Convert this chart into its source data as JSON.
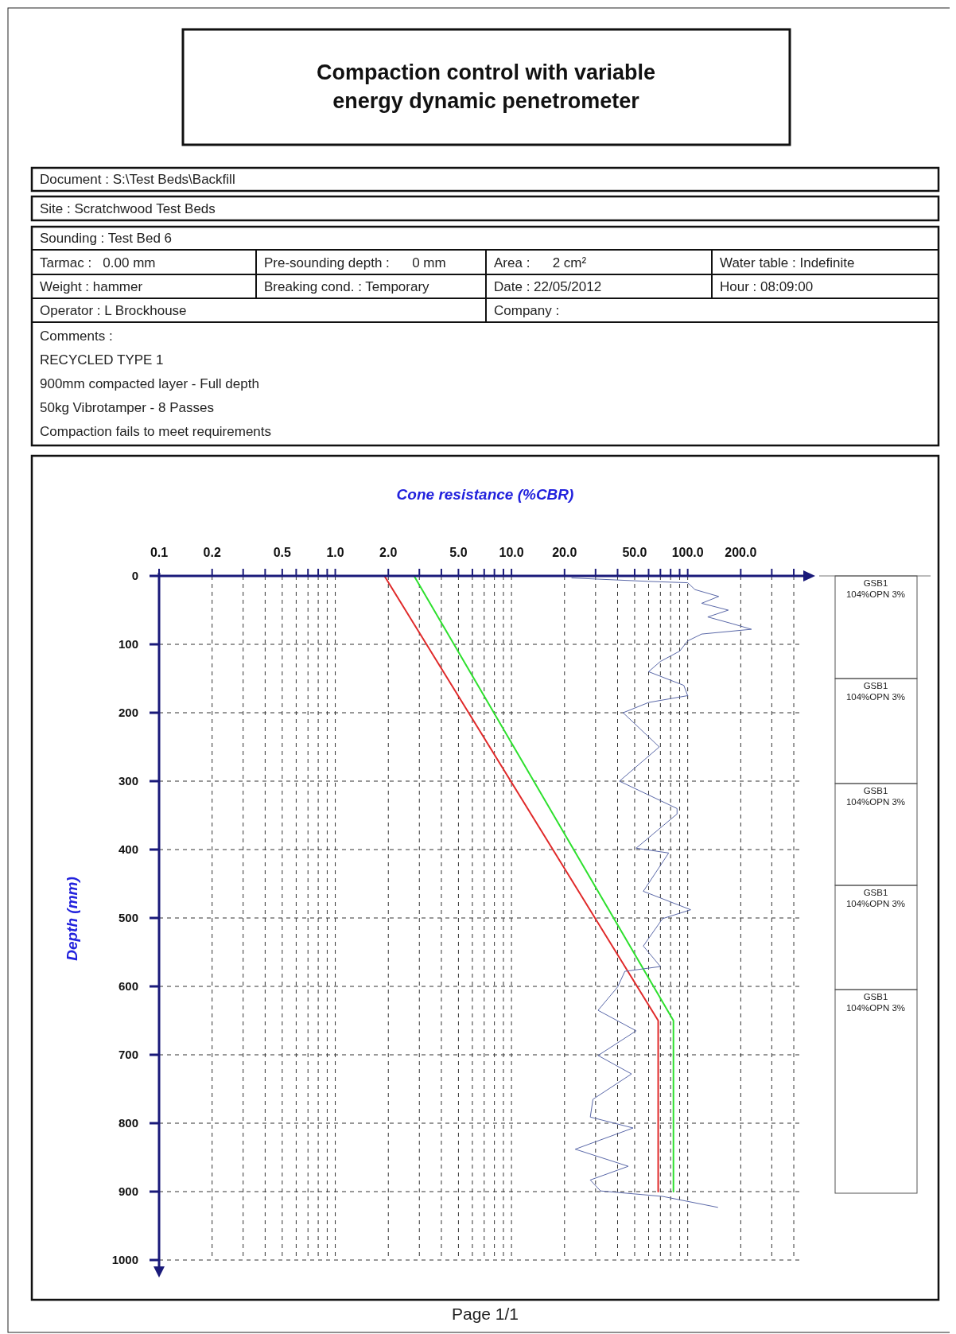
{
  "chart_data": {
    "type": "line",
    "title": "Compaction control with variable\nenergy dynamic penetrometer",
    "xlabel": "Cone resistance (%CBR)",
    "ylabel": "Depth (mm)",
    "log": "x",
    "grid": true,
    "marker": "none",
    "line_style": "solid",
    "xlim": [
      0.1,
      430
    ],
    "ylim": [
      1000,
      0
    ],
    "xticks": [
      0.1,
      0.2,
      {
        "value": 0.3,
        "label": null
      },
      {
        "value": 0.4,
        "label": null
      },
      0.5,
      {
        "value": 0.6,
        "label": null
      },
      {
        "value": 0.7,
        "label": null
      },
      {
        "value": 0.8,
        "label": null
      },
      {
        "value": 0.9,
        "label": null
      },
      {
        "value": 1,
        "label": "1.0"
      },
      {
        "value": 2,
        "label": "2.0"
      },
      {
        "value": 3,
        "label": null
      },
      {
        "value": 4,
        "label": null
      },
      {
        "value": 5,
        "label": "5.0"
      },
      {
        "value": 6,
        "label": null
      },
      {
        "value": 7,
        "label": null
      },
      {
        "value": 8,
        "label": null
      },
      {
        "value": 9,
        "label": null
      },
      {
        "value": 10,
        "label": "10.0"
      },
      {
        "value": 20,
        "label": "20.0"
      },
      {
        "value": 30,
        "label": null
      },
      {
        "value": 40,
        "label": null
      },
      {
        "value": 50,
        "label": "50.0"
      },
      {
        "value": 60,
        "label": null
      },
      {
        "value": 70,
        "label": null
      },
      {
        "value": 80,
        "label": null
      },
      {
        "value": 90,
        "label": null
      },
      {
        "value": 100,
        "label": "100.0"
      },
      {
        "value": 200,
        "label": "200.0"
      },
      {
        "value": 300,
        "label": null
      },
      {
        "value": 400,
        "label": null
      }
    ],
    "yticks": [
      0,
      100,
      200,
      300,
      400,
      500,
      600,
      700,
      800,
      900,
      1000
    ],
    "series": [
      {
        "color": "#e02a2a",
        "x": [
          1.9,
          68,
          68
        ],
        "values": [
          0,
          650,
          900
        ]
      },
      {
        "color": "#2ee02e",
        "x": [
          2.8,
          83,
          83
        ],
        "values": [
          0,
          650,
          900
        ]
      },
      {
        "color": "#5a68a8",
        "x": [
          22,
          60,
          100,
          110,
          150,
          120,
          170,
          130,
          180,
          230,
          120,
          100,
          90,
          70,
          60,
          95,
          100,
          60,
          43,
          69,
          41,
          87,
          87,
          51,
          78,
          56,
          104,
          72,
          56,
          70,
          44,
          40,
          31,
          51,
          31,
          48,
          29,
          28,
          49,
          23,
          46,
          28,
          32,
          72,
          148
        ],
        "values": [
          3,
          8,
          10,
          20,
          30,
          40,
          50,
          60,
          70,
          78,
          85,
          95,
          110,
          125,
          140,
          160,
          175,
          185,
          200,
          250,
          300,
          340,
          348,
          398,
          405,
          461,
          488,
          501,
          541,
          571,
          578,
          601,
          635,
          665,
          701,
          728,
          765,
          791,
          807,
          838,
          863,
          883,
          899,
          907,
          923
        ]
      }
    ],
    "annotations": [
      "Document : S:\\Test Beds\\Backfill",
      "Site : Scratchwood Test Beds",
      "Sounding : Test Bed 6",
      "Tarmac :   0.00 mm",
      "Pre-sounding depth :      0 mm",
      "Area :      2 cm²",
      "Water table : Indefinite",
      "Weight : hammer",
      "Breaking cond. : Temporary",
      "Date : 22/05/2012",
      "Hour : 08:09:00",
      "Operator : L Brockhouse",
      "Company :",
      "Comments :",
      "RECYCLED TYPE 1",
      "900mm compacted layer - Full depth",
      "50kg Vibrotamper - 8 Passes",
      "Compaction fails to meet requirements",
      "Page 1/1",
      "GSB1\n104%OPN 3%",
      "GSB1\n104%OPN 3%",
      "GSB1\n104%OPN 3%",
      "GSB1\n104%OPN 3%",
      "GSB1\n104%OPN 3%"
    ]
  }
}
